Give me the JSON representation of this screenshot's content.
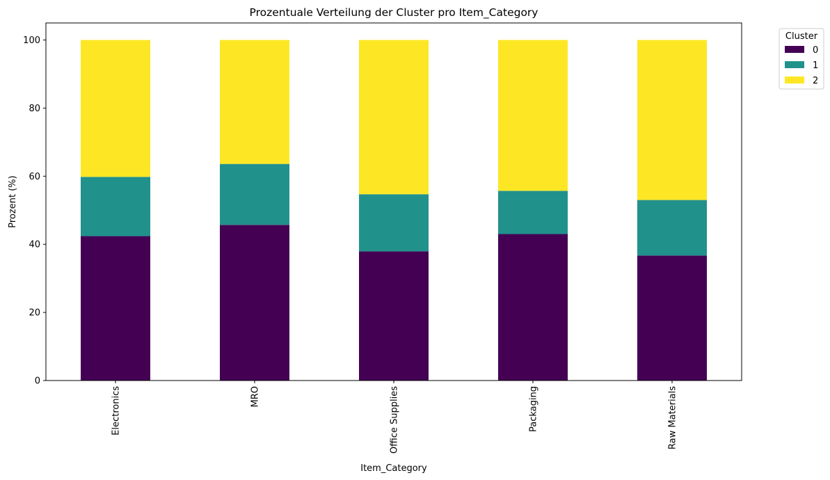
{
  "chart_data": {
    "type": "bar",
    "stacked": true,
    "title": "Prozentuale Verteilung der Cluster pro Item_Category",
    "xlabel": "Item_Category",
    "ylabel": "Prozent (%)",
    "ylim": [
      0,
      105
    ],
    "yticks": [
      "0",
      "20",
      "40",
      "60",
      "80",
      "100"
    ],
    "categories": [
      "Electronics",
      "MRO",
      "Office Supplies",
      "Packaging",
      "Raw Materials"
    ],
    "series": [
      {
        "name": "0",
        "color": "#440154",
        "values": [
          42.4,
          45.7,
          37.9,
          43.0,
          36.7
        ]
      },
      {
        "name": "1",
        "color": "#21918c",
        "values": [
          17.4,
          17.9,
          16.8,
          12.7,
          16.3
        ]
      },
      {
        "name": "2",
        "color": "#fde725",
        "values": [
          40.2,
          36.4,
          45.3,
          44.3,
          47.0
        ]
      }
    ],
    "legend": {
      "title": "Cluster",
      "placement": "outside-top-right"
    },
    "grid": false
  }
}
